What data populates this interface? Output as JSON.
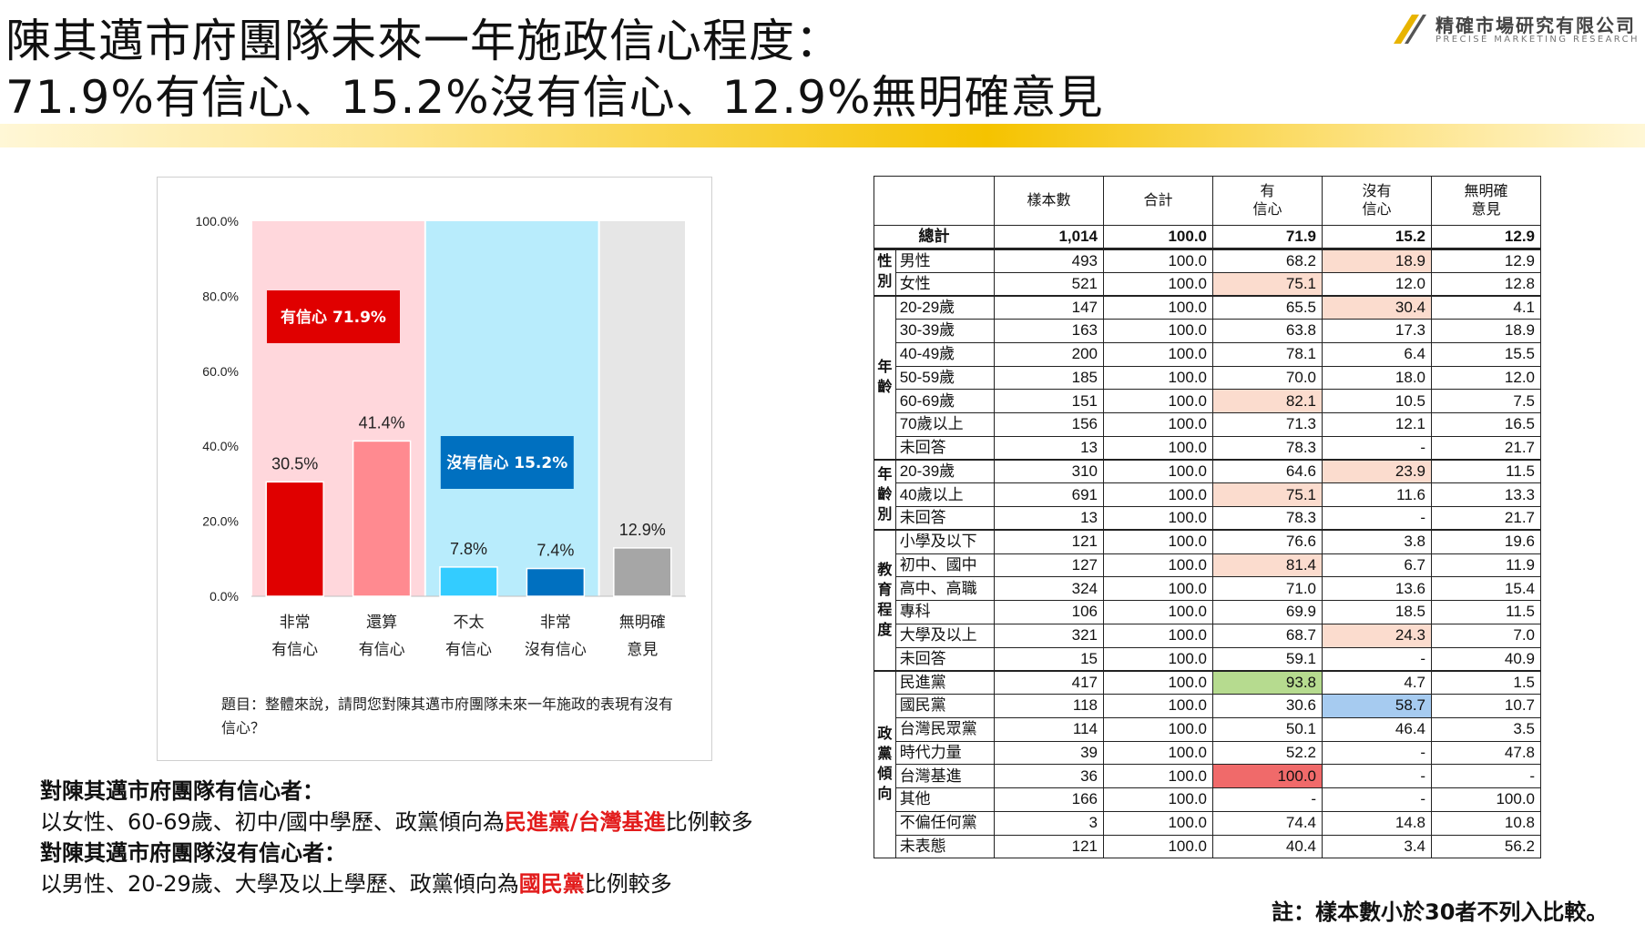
{
  "title": {
    "line1": "陳其邁市府團隊未來一年施政信心程度：",
    "line2": "71.9%有信心、15.2%沒有信心、12.9%無明確意見"
  },
  "logo": {
    "name": "精確市場研究有限公司",
    "english": "PRECISE MARKETING RESEARCH"
  },
  "chart_data": {
    "type": "bar",
    "categories": [
      "非常\n有信心",
      "還算\n有信心",
      "不太\n有信心",
      "非常\n沒有信心",
      "無明確\n意見"
    ],
    "values": [
      30.5,
      41.4,
      7.8,
      7.4,
      12.9
    ],
    "value_labels": [
      "30.5%",
      "41.4%",
      "7.8%",
      "7.4%",
      "12.9%"
    ],
    "bar_colors": [
      "#e00000",
      "#ff8a90",
      "#33ccff",
      "#0070c0",
      "#a6a6a6"
    ],
    "ylim": [
      0,
      100
    ],
    "y_ticks": [
      "0.0%",
      "20.0%",
      "40.0%",
      "60.0%",
      "80.0%",
      "100.0%"
    ],
    "groups": [
      {
        "label": "有信心 71.9%",
        "span": [
          0,
          1
        ],
        "bg": "#ffd7dc",
        "box": "#e00000"
      },
      {
        "label": "沒有信心 15.2%",
        "span": [
          2,
          3
        ],
        "bg": "#b8ecfc",
        "box": "#0070c0"
      },
      {
        "label": "",
        "span": [
          4,
          4
        ],
        "bg": "#e6e6e6",
        "box": ""
      }
    ],
    "question": "題目：整體來說，請問您對陳其邁市府團隊未來一年施政的表現有沒有信心？"
  },
  "notes": {
    "line1": "對陳其邁市府團隊有信心者：",
    "line2_pre": "以女性、60-69歲、初中/國中學歷、政黨傾向為",
    "line2_red": "民進黨/台灣基進",
    "line2_post": "比例較多",
    "line3": "對陳其邁市府團隊沒有信心者：",
    "line4_pre": "以男性、20-29歲、大學及以上學歷、政黨傾向為",
    "line4_red": "國民黨",
    "line4_post": "比例較多"
  },
  "footnote": "註：樣本數小於30者不列入比較。",
  "table": {
    "headers": [
      "樣本數",
      "合計",
      "有\n信心",
      "沒有\n信心",
      "無明確\n意見"
    ],
    "total": {
      "label": "總計",
      "values": [
        "1,014",
        "100.0",
        "71.9",
        "15.2",
        "12.9"
      ]
    },
    "groups": [
      {
        "name": "性別",
        "rows": [
          {
            "label": "男性",
            "values": [
              "493",
              "100.0",
              "68.2",
              "18.9",
              "12.9"
            ],
            "hl": {
              "3": "pink"
            }
          },
          {
            "label": "女性",
            "values": [
              "521",
              "100.0",
              "75.1",
              "12.0",
              "12.8"
            ],
            "hl": {
              "2": "pink"
            }
          }
        ]
      },
      {
        "name": "年齡",
        "rows": [
          {
            "label": "20-29歲",
            "values": [
              "147",
              "100.0",
              "65.5",
              "30.4",
              "4.1"
            ],
            "hl": {
              "3": "pink"
            }
          },
          {
            "label": "30-39歲",
            "values": [
              "163",
              "100.0",
              "63.8",
              "17.3",
              "18.9"
            ]
          },
          {
            "label": "40-49歲",
            "values": [
              "200",
              "100.0",
              "78.1",
              "6.4",
              "15.5"
            ]
          },
          {
            "label": "50-59歲",
            "values": [
              "185",
              "100.0",
              "70.0",
              "18.0",
              "12.0"
            ]
          },
          {
            "label": "60-69歲",
            "values": [
              "151",
              "100.0",
              "82.1",
              "10.5",
              "7.5"
            ],
            "hl": {
              "2": "pink"
            }
          },
          {
            "label": "70歲以上",
            "values": [
              "156",
              "100.0",
              "71.3",
              "12.1",
              "16.5"
            ]
          },
          {
            "label": "未回答",
            "values": [
              "13",
              "100.0",
              "78.3",
              "-",
              "21.7"
            ]
          }
        ]
      },
      {
        "name": "年齡別",
        "rows": [
          {
            "label": "20-39歲",
            "values": [
              "310",
              "100.0",
              "64.6",
              "23.9",
              "11.5"
            ],
            "hl": {
              "3": "pink"
            }
          },
          {
            "label": "40歲以上",
            "values": [
              "691",
              "100.0",
              "75.1",
              "11.6",
              "13.3"
            ],
            "hl": {
              "2": "pink"
            }
          },
          {
            "label": "未回答",
            "values": [
              "13",
              "100.0",
              "78.3",
              "-",
              "21.7"
            ]
          }
        ]
      },
      {
        "name": "教育程度",
        "rows": [
          {
            "label": "小學及以下",
            "values": [
              "121",
              "100.0",
              "76.6",
              "3.8",
              "19.6"
            ]
          },
          {
            "label": "初中、國中",
            "values": [
              "127",
              "100.0",
              "81.4",
              "6.7",
              "11.9"
            ],
            "hl": {
              "2": "pink"
            }
          },
          {
            "label": "高中、高職",
            "values": [
              "324",
              "100.0",
              "71.0",
              "13.6",
              "15.4"
            ]
          },
          {
            "label": "專科",
            "values": [
              "106",
              "100.0",
              "69.9",
              "18.5",
              "11.5"
            ]
          },
          {
            "label": "大學及以上",
            "values": [
              "321",
              "100.0",
              "68.7",
              "24.3",
              "7.0"
            ],
            "hl": {
              "3": "pink"
            }
          },
          {
            "label": "未回答",
            "values": [
              "15",
              "100.0",
              "59.1",
              "-",
              "40.9"
            ]
          }
        ]
      },
      {
        "name": "政黨傾向",
        "rows": [
          {
            "label": "民進黨",
            "values": [
              "417",
              "100.0",
              "93.8",
              "4.7",
              "1.5"
            ],
            "hl": {
              "2": "green"
            }
          },
          {
            "label": "國民黨",
            "values": [
              "118",
              "100.0",
              "30.6",
              "58.7",
              "10.7"
            ],
            "hl": {
              "3": "blue"
            }
          },
          {
            "label": "台灣民眾黨",
            "values": [
              "114",
              "100.0",
              "50.1",
              "46.4",
              "3.5"
            ]
          },
          {
            "label": "時代力量",
            "values": [
              "39",
              "100.0",
              "52.2",
              "-",
              "47.8"
            ]
          },
          {
            "label": "台灣基進",
            "values": [
              "36",
              "100.0",
              "100.0",
              "-",
              "-"
            ],
            "hl": {
              "2": "red"
            }
          },
          {
            "label": "其他",
            "values": [
              "166",
              "100.0",
              "-",
              "-",
              "100.0"
            ]
          },
          {
            "label": "不偏任何黨",
            "values": [
              "3",
              "100.0",
              "74.4",
              "14.8",
              "10.8"
            ]
          },
          {
            "label": "未表態",
            "values": [
              "121",
              "100.0",
              "40.4",
              "3.4",
              "56.2"
            ]
          }
        ]
      }
    ]
  }
}
